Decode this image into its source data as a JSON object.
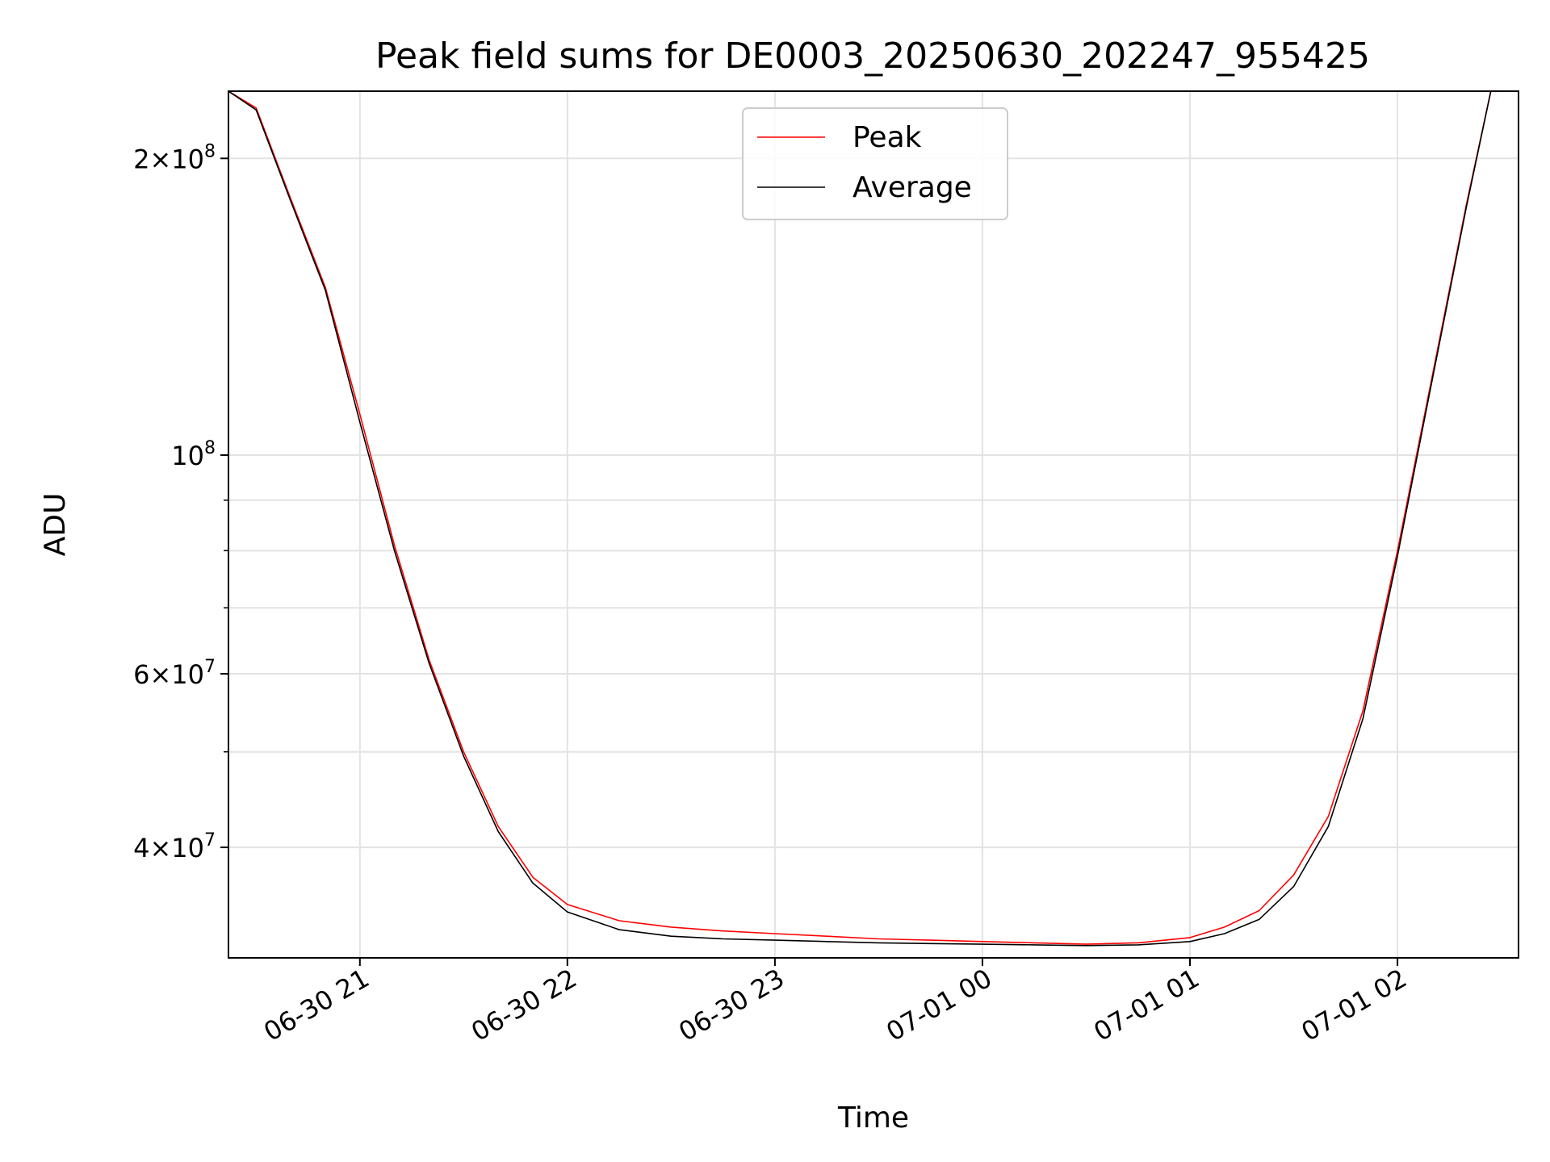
{
  "chart_data": {
    "type": "line",
    "title": "Peak field sums for DE0003_20250630_202247_955425",
    "xlabel": "Time",
    "ylabel": "ADU",
    "yscale": "log",
    "xlim": [
      "2025-06-30 20:22",
      "2025-07-01 02:35"
    ],
    "ylim": [
      30900000,
      234000000
    ],
    "grid": true,
    "legend_position": "top-center",
    "x_ticks": [
      {
        "value": "2025-06-30 21:00",
        "label": "06-30 21"
      },
      {
        "value": "2025-06-30 22:00",
        "label": "06-30 22"
      },
      {
        "value": "2025-06-30 23:00",
        "label": "06-30 23"
      },
      {
        "value": "2025-07-01 00:00",
        "label": "07-01 00"
      },
      {
        "value": "2025-07-01 01:00",
        "label": "07-01 01"
      },
      {
        "value": "2025-07-01 02:00",
        "label": "07-01 02"
      }
    ],
    "y_major_ticks": [
      {
        "value": 200000000,
        "base": "2×10",
        "exp": "8"
      },
      {
        "value": 100000000,
        "base": "10",
        "exp": "8"
      },
      {
        "value": 60000000,
        "base": "6×10",
        "exp": "7"
      },
      {
        "value": 40000000,
        "base": "4×10",
        "exp": "7"
      }
    ],
    "y_minor_ticks": [
      90000000,
      80000000,
      70000000,
      50000000,
      30000000
    ],
    "colors": {
      "Peak": "#ff0000",
      "Average": "#000000"
    },
    "series": [
      {
        "name": "Peak",
        "x": [
          "2025-06-30 20:22",
          "2025-06-30 20:30",
          "2025-06-30 20:40",
          "2025-06-30 20:50",
          "2025-06-30 21:00",
          "2025-06-30 21:10",
          "2025-06-30 21:20",
          "2025-06-30 21:30",
          "2025-06-30 21:40",
          "2025-06-30 21:50",
          "2025-06-30 22:00",
          "2025-06-30 22:15",
          "2025-06-30 22:30",
          "2025-06-30 22:45",
          "2025-06-30 23:00",
          "2025-06-30 23:15",
          "2025-06-30 23:30",
          "2025-06-30 23:45",
          "2025-07-01 00:00",
          "2025-07-01 00:15",
          "2025-07-01 00:30",
          "2025-07-01 00:45",
          "2025-07-01 01:00",
          "2025-07-01 01:10",
          "2025-07-01 01:20",
          "2025-07-01 01:30",
          "2025-07-01 01:40",
          "2025-07-01 01:50",
          "2025-07-01 02:00",
          "2025-07-01 02:10",
          "2025-07-01 02:20",
          "2025-07-01 02:27"
        ],
        "values": [
          234000000,
          225000000,
          182000000,
          148000000,
          110000000,
          81000000,
          62000000,
          50000000,
          42000000,
          37300000,
          35000000,
          33700000,
          33200000,
          32900000,
          32700000,
          32500000,
          32300000,
          32200000,
          32100000,
          32000000,
          31900000,
          32000000,
          32400000,
          33200000,
          34500000,
          37500000,
          43000000,
          55000000,
          80000000,
          120000000,
          180000000,
          234000000
        ]
      },
      {
        "name": "Average",
        "x": [
          "2025-06-30 20:22",
          "2025-06-30 20:30",
          "2025-06-30 20:40",
          "2025-06-30 20:50",
          "2025-06-30 21:00",
          "2025-06-30 21:10",
          "2025-06-30 21:20",
          "2025-06-30 21:30",
          "2025-06-30 21:40",
          "2025-06-30 21:50",
          "2025-06-30 22:00",
          "2025-06-30 22:15",
          "2025-06-30 22:30",
          "2025-06-30 22:45",
          "2025-06-30 23:00",
          "2025-06-30 23:15",
          "2025-06-30 23:30",
          "2025-06-30 23:45",
          "2025-07-01 00:00",
          "2025-07-01 00:15",
          "2025-07-01 00:30",
          "2025-07-01 00:45",
          "2025-07-01 01:00",
          "2025-07-01 01:10",
          "2025-07-01 01:20",
          "2025-07-01 01:30",
          "2025-07-01 01:40",
          "2025-07-01 01:50",
          "2025-07-01 02:00",
          "2025-07-01 02:10",
          "2025-07-01 02:20",
          "2025-07-01 02:27"
        ],
        "values": [
          234000000,
          224000000,
          181000000,
          147000000,
          108000000,
          80000000,
          61500000,
          49500000,
          41500000,
          36800000,
          34400000,
          33000000,
          32500000,
          32300000,
          32200000,
          32100000,
          32000000,
          31950000,
          31900000,
          31850000,
          31800000,
          31850000,
          32100000,
          32700000,
          33800000,
          36500000,
          42000000,
          54000000,
          79000000,
          119000000,
          179000000,
          234000000
        ]
      }
    ]
  }
}
